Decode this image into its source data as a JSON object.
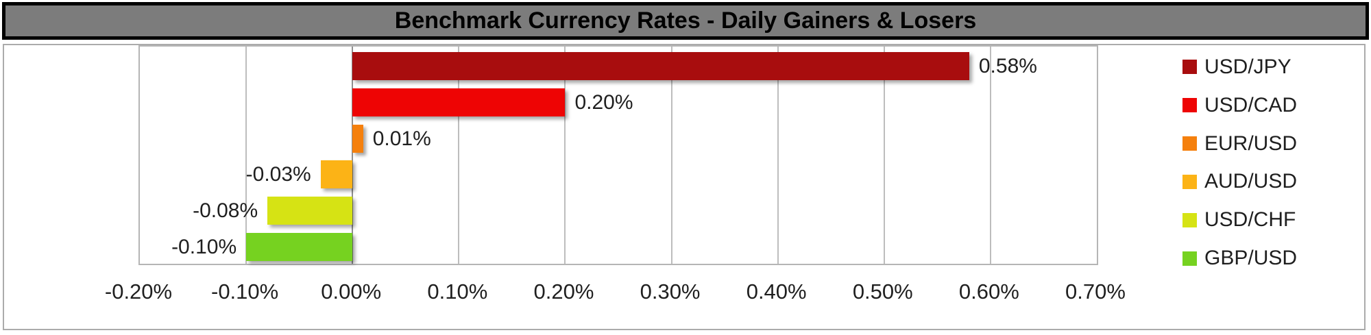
{
  "chart": {
    "title": "Benchmark Currency Rates - Daily Gainers & Losers"
  },
  "chart_data": {
    "type": "bar",
    "orientation": "horizontal",
    "title": "Benchmark Currency Rates - Daily Gainers & Losers",
    "categories": [
      "USD/JPY",
      "USD/CAD",
      "EUR/USD",
      "AUD/USD",
      "USD/CHF",
      "GBP/USD"
    ],
    "values": [
      0.58,
      0.2,
      0.01,
      -0.03,
      -0.08,
      -0.1
    ],
    "value_labels": [
      "0.58%",
      "0.20%",
      "0.01%",
      "-0.03%",
      "-0.08%",
      "-0.10%"
    ],
    "bar_colors": [
      "#a80d0e",
      "#ee0404",
      "#f5800d",
      "#fcb316",
      "#d6e314",
      "#76d220"
    ],
    "xlabel": "",
    "ylabel": "",
    "xlim": [
      -0.2,
      0.7
    ],
    "x_tick_values": [
      -0.2,
      -0.1,
      0.0,
      0.1,
      0.2,
      0.3,
      0.4,
      0.5,
      0.6,
      0.7
    ],
    "x_tick_labels": [
      "-0.20%",
      "-0.10%",
      "0.00%",
      "0.10%",
      "0.20%",
      "0.30%",
      "0.40%",
      "0.50%",
      "0.60%",
      "0.70%"
    ],
    "grid": true,
    "legend_position": "right",
    "legend_entries": [
      "USD/JPY",
      "USD/CAD",
      "EUR/USD",
      "AUD/USD",
      "USD/CHF",
      "GBP/USD"
    ]
  },
  "colors": {
    "title_bar_background": "#7c7c7c",
    "title_bar_border": "#000000",
    "title_text": "#000000",
    "chart_border": "#ababab",
    "plot_border": "#b5b5b5",
    "gridline": "#bdbdbd",
    "zero_axis_line": "#8f8f8f",
    "label_text": "#1f1f1f",
    "background": "#ffffff"
  }
}
